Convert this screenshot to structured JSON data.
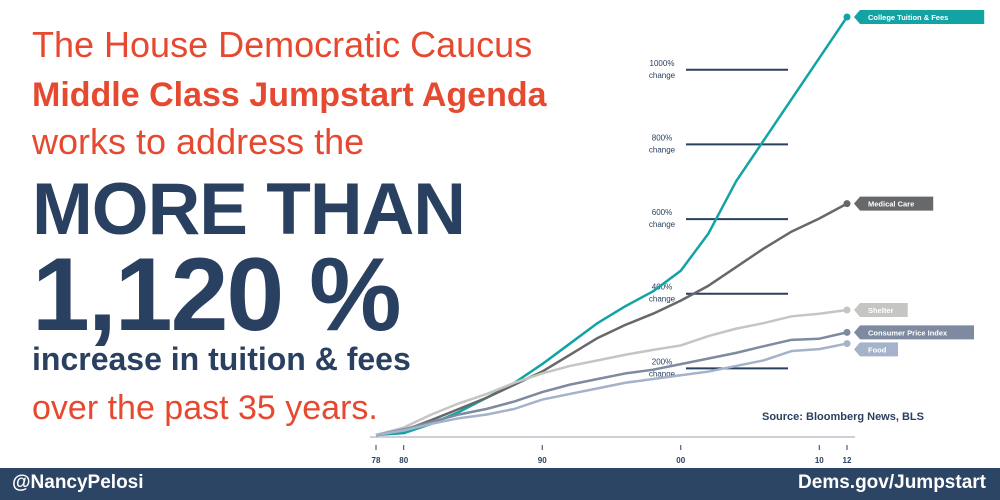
{
  "headline": {
    "line1": "The House Democratic Caucus",
    "line2": "Middle Class Jumpstart Agenda",
    "line3": "works to address the",
    "line4": "MORE THAN",
    "line5": "1,120 %",
    "line6": "increase in tuition & fees",
    "line7": "over the past 35 years."
  },
  "footer": {
    "handle": "@NancyPelosi",
    "site": "Dems.gov/Jumpstart"
  },
  "colors": {
    "accent": "#e5492f",
    "navy": "#2a4060",
    "footer_bg": "#2d4564"
  },
  "chart_data": {
    "type": "line",
    "source": "Source: Bloomberg News, BLS",
    "x_ticks": [
      {
        "value": 1978,
        "label": "78"
      },
      {
        "value": 1980,
        "label": "80"
      },
      {
        "value": 1990,
        "label": "90"
      },
      {
        "value": 2000,
        "label": "00"
      },
      {
        "value": 2010,
        "label": "10"
      },
      {
        "value": 2012,
        "label": "12"
      }
    ],
    "reference_lines": [
      {
        "value": 1000,
        "label1": "1000%",
        "label2": "change"
      },
      {
        "value": 800,
        "label1": "800%",
        "label2": "change"
      },
      {
        "value": 600,
        "label1": "600%",
        "label2": "change"
      },
      {
        "value": 400,
        "label1": "400%",
        "label2": "change"
      },
      {
        "value": 200,
        "label1": "200%",
        "label2": "change"
      }
    ],
    "ylim": [
      0,
      1120
    ],
    "grid": false,
    "series": [
      {
        "name": "College Tuition & Fees",
        "color": "#13a3a5",
        "width": 2.5,
        "x": [
          1978,
          1980,
          1982,
          1984,
          1986,
          1988,
          1990,
          1992,
          1994,
          1996,
          1998,
          2000,
          2002,
          2004,
          2006,
          2008,
          2010,
          2012
        ],
        "y": [
          0,
          5,
          30,
          62,
          100,
          140,
          190,
          245,
          300,
          345,
          385,
          440,
          540,
          680,
          790,
          900,
          1010,
          1120
        ]
      },
      {
        "name": "Medical Care",
        "color": "#66686a",
        "width": 2.5,
        "x": [
          1978,
          1980,
          1982,
          1984,
          1986,
          1988,
          1990,
          1992,
          1994,
          1996,
          1998,
          2000,
          2002,
          2004,
          2006,
          2008,
          2010,
          2012
        ],
        "y": [
          0,
          12,
          40,
          70,
          100,
          135,
          170,
          215,
          260,
          295,
          325,
          360,
          400,
          450,
          500,
          545,
          580,
          620
        ]
      },
      {
        "name": "Shelter",
        "color": "#c5c6c2",
        "width": 2.5,
        "x": [
          1978,
          1980,
          1982,
          1984,
          1986,
          1988,
          1990,
          1992,
          1994,
          1996,
          1998,
          2000,
          2002,
          2004,
          2006,
          2008,
          2010,
          2012
        ],
        "y": [
          0,
          20,
          55,
          85,
          110,
          140,
          165,
          185,
          200,
          215,
          228,
          240,
          265,
          285,
          300,
          318,
          325,
          335
        ]
      },
      {
        "name": "Consumer Price Index",
        "color": "#7d8aa0",
        "width": 2.5,
        "x": [
          1978,
          1980,
          1982,
          1984,
          1986,
          1988,
          1990,
          1992,
          1994,
          1996,
          1998,
          2000,
          2002,
          2004,
          2006,
          2008,
          2010,
          2012
        ],
        "y": [
          0,
          15,
          35,
          55,
          70,
          90,
          115,
          135,
          150,
          165,
          175,
          190,
          205,
          220,
          238,
          255,
          258,
          275
        ]
      },
      {
        "name": "Food",
        "color": "#a4b3c9",
        "width": 2.5,
        "x": [
          1978,
          1980,
          1982,
          1984,
          1986,
          1988,
          1990,
          1992,
          1994,
          1996,
          1998,
          2000,
          2002,
          2004,
          2006,
          2008,
          2010,
          2012
        ],
        "y": [
          0,
          12,
          30,
          45,
          55,
          70,
          95,
          110,
          125,
          140,
          150,
          160,
          170,
          185,
          200,
          225,
          230,
          245
        ]
      }
    ]
  }
}
